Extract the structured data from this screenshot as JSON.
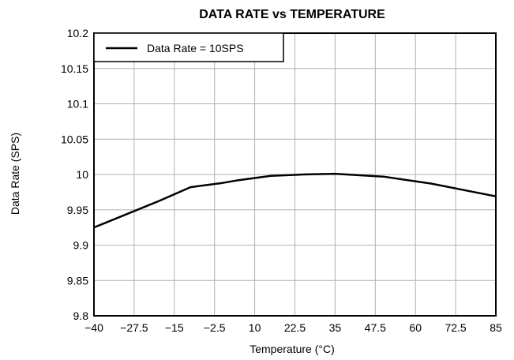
{
  "chart_data": {
    "type": "line",
    "title": "DATA RATE vs TEMPERATURE",
    "xlabel": "Temperature (°C)",
    "ylabel": "Data Rate (SPS)",
    "xlim": [
      -40,
      85
    ],
    "ylim": [
      9.8,
      10.2
    ],
    "x_ticks": [
      -40,
      -27.5,
      -15,
      -2.5,
      10,
      22.5,
      35,
      47.5,
      60,
      72.5,
      85
    ],
    "x_tick_labels": [
      "−40",
      "−27.5",
      "−15",
      "−2.5",
      "10",
      "22.5",
      "35",
      "47.5",
      "60",
      "72.5",
      "85"
    ],
    "y_ticks": [
      9.8,
      9.85,
      9.9,
      9.95,
      10,
      10.05,
      10.1,
      10.15,
      10.2
    ],
    "y_tick_labels": [
      "9.8",
      "9.85",
      "9.9",
      "9.95",
      "10",
      "10.05",
      "10.1",
      "10.15",
      "10.2"
    ],
    "grid": true,
    "legend_position": "top-left",
    "series": [
      {
        "name": "Data Rate = 10SPS",
        "color": "#000000",
        "x": [
          -40,
          -20,
          -10,
          0,
          5,
          15,
          25,
          35,
          50,
          65,
          75,
          85
        ],
        "y": [
          9.925,
          9.962,
          9.982,
          9.988,
          9.992,
          9.998,
          10.0,
          10.001,
          9.997,
          9.987,
          9.978,
          9.969
        ]
      }
    ]
  }
}
